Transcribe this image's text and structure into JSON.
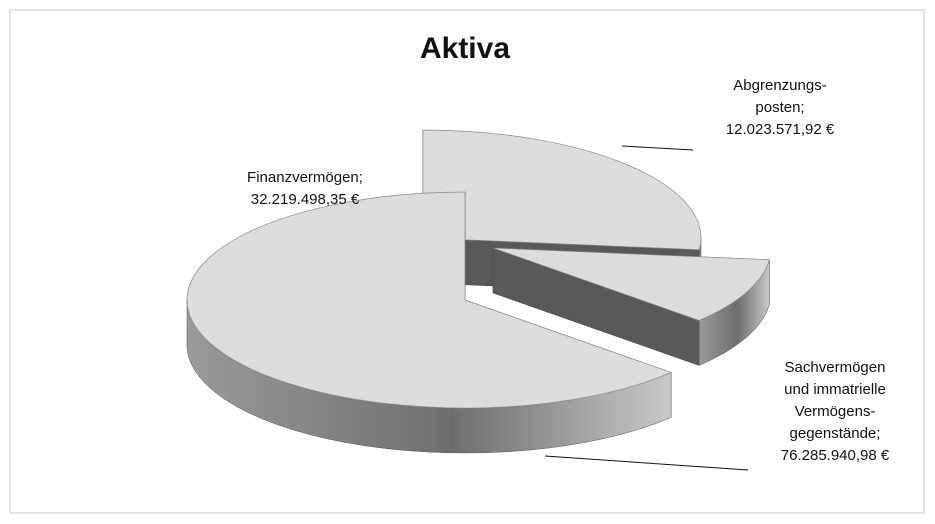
{
  "chart_data": {
    "type": "pie3d",
    "title": "Aktiva",
    "categories": [
      "Finanzvermögen;",
      "Abgrenzungs-\nposten;",
      "Sachvermögen\nund immatrielle\nVermögens-\ngegenstände;"
    ],
    "values": [
      32219498.35,
      12023571.92,
      76285940.98
    ],
    "value_labels": [
      "32.219.498,35 €",
      "12.023.571,92 €",
      "76.285.940,98 €"
    ],
    "color": "#dcdcdc"
  }
}
